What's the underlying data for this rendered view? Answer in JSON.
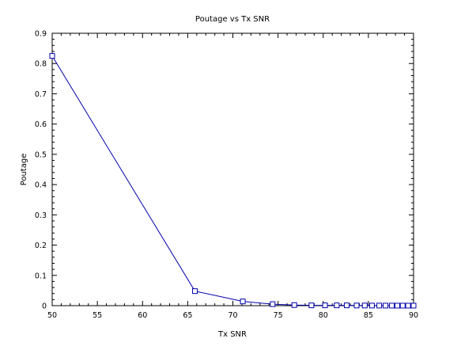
{
  "chart_data": {
    "type": "line",
    "title": "Poutage vs Tx SNR",
    "xlabel": "Tx SNR",
    "ylabel": "Poutage",
    "xlim": [
      50,
      90
    ],
    "ylim": [
      0,
      0.9
    ],
    "x_ticks": [
      50,
      55,
      60,
      65,
      70,
      75,
      80,
      85,
      90
    ],
    "y_ticks": [
      0,
      0.1,
      0.2,
      0.3,
      0.4,
      0.5,
      0.6,
      0.7,
      0.8,
      0.9
    ],
    "x_minor_step": 1,
    "y_minor_step": 0.02,
    "grid": false,
    "legend": "none",
    "series": [
      {
        "color": "#0000aa",
        "marker": "square",
        "x": [
          50,
          65.8,
          71.1,
          74.4,
          76.8,
          78.7,
          80.2,
          81.5,
          82.6,
          83.7,
          84.6,
          85.4,
          86.2,
          86.9,
          87.6,
          88.2,
          88.8,
          89.4,
          90
        ],
        "y": [
          0.825,
          0.048,
          0.014,
          0.005,
          0.002,
          0.001,
          0.001,
          0.001,
          0.001,
          0.0005,
          0.0005,
          0.0003,
          0.0003,
          0.0002,
          0.0002,
          0.0001,
          0.0001,
          0.0001,
          0.0001
        ]
      }
    ]
  }
}
